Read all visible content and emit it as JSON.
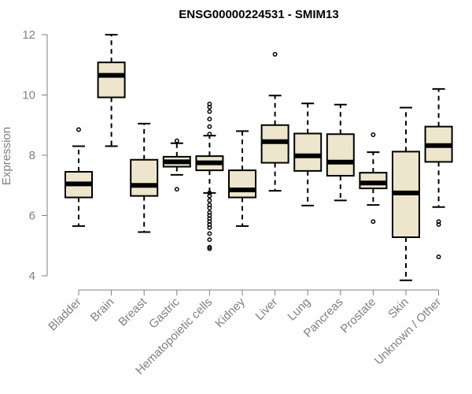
{
  "chart_data": {
    "type": "boxplot",
    "title": "ENSG00000224531 - SMIM13",
    "ylabel": "Expression",
    "xlabel": "",
    "ylim": [
      4,
      12
    ],
    "yticks": [
      "4",
      "6",
      "8",
      "10",
      "12"
    ],
    "categories": [
      "Bladder",
      "Brain",
      "Breast",
      "Gastric",
      "Hematopoietic cells",
      "Kidney",
      "Liver",
      "Lung",
      "Pancreas",
      "Prostate",
      "Skin",
      "Unknown / Other"
    ],
    "boxes": [
      {
        "min": 5.65,
        "q1": 6.6,
        "median": 7.05,
        "q3": 7.45,
        "max": 8.3,
        "outliers": [
          8.85
        ]
      },
      {
        "min": 8.3,
        "q1": 9.92,
        "median": 10.65,
        "q3": 11.08,
        "max": 12.0,
        "outliers": []
      },
      {
        "min": 5.45,
        "q1": 6.65,
        "median": 7.0,
        "q3": 7.85,
        "max": 9.05,
        "outliers": []
      },
      {
        "min": 7.35,
        "q1": 7.62,
        "median": 7.78,
        "q3": 7.95,
        "max": 8.4,
        "outliers": [
          8.48,
          6.87
        ]
      },
      {
        "min": 6.75,
        "q1": 7.5,
        "median": 7.75,
        "q3": 7.97,
        "max": 8.65,
        "outliers": [
          9.7,
          9.6,
          9.45,
          9.2,
          8.95,
          8.7,
          6.75,
          6.65,
          6.5,
          6.35,
          6.25,
          6.1,
          6.0,
          5.9,
          5.8,
          5.7,
          5.6,
          5.4,
          5.2,
          4.95,
          4.9
        ]
      },
      {
        "min": 5.65,
        "q1": 6.6,
        "median": 6.85,
        "q3": 7.5,
        "max": 8.8,
        "outliers": []
      },
      {
        "min": 6.82,
        "q1": 7.75,
        "median": 8.45,
        "q3": 9.0,
        "max": 9.98,
        "outliers": [
          11.35
        ]
      },
      {
        "min": 6.33,
        "q1": 7.48,
        "median": 7.98,
        "q3": 8.72,
        "max": 9.72,
        "outliers": []
      },
      {
        "min": 6.5,
        "q1": 7.32,
        "median": 7.77,
        "q3": 8.7,
        "max": 9.68,
        "outliers": []
      },
      {
        "min": 6.35,
        "q1": 6.9,
        "median": 7.08,
        "q3": 7.42,
        "max": 8.1,
        "outliers": [
          8.68,
          5.8
        ]
      },
      {
        "min": 3.85,
        "q1": 5.28,
        "median": 6.75,
        "q3": 8.12,
        "max": 9.58,
        "outliers": []
      },
      {
        "min": 6.28,
        "q1": 7.78,
        "median": 8.32,
        "q3": 8.95,
        "max": 10.2,
        "outliers": [
          5.8,
          5.7,
          4.63
        ]
      }
    ],
    "colors": {
      "box_fill": "#ede6cc",
      "stroke": "#000000",
      "axis": "#808080"
    }
  }
}
